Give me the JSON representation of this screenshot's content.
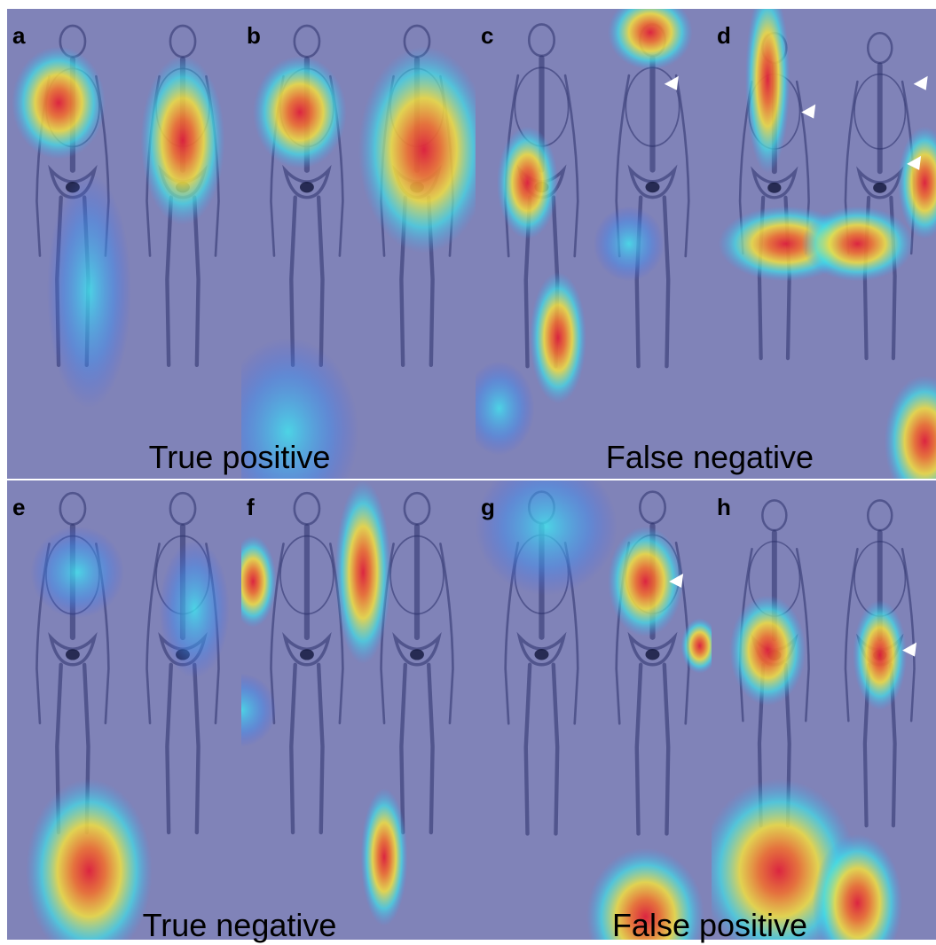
{
  "panels": [
    {
      "label": "a"
    },
    {
      "label": "b"
    },
    {
      "label": "c"
    },
    {
      "label": "d"
    },
    {
      "label": "e"
    },
    {
      "label": "f"
    },
    {
      "label": "g"
    },
    {
      "label": "h"
    }
  ],
  "captions": [
    "True positive",
    "False negative",
    "True negative",
    "False positive"
  ]
}
